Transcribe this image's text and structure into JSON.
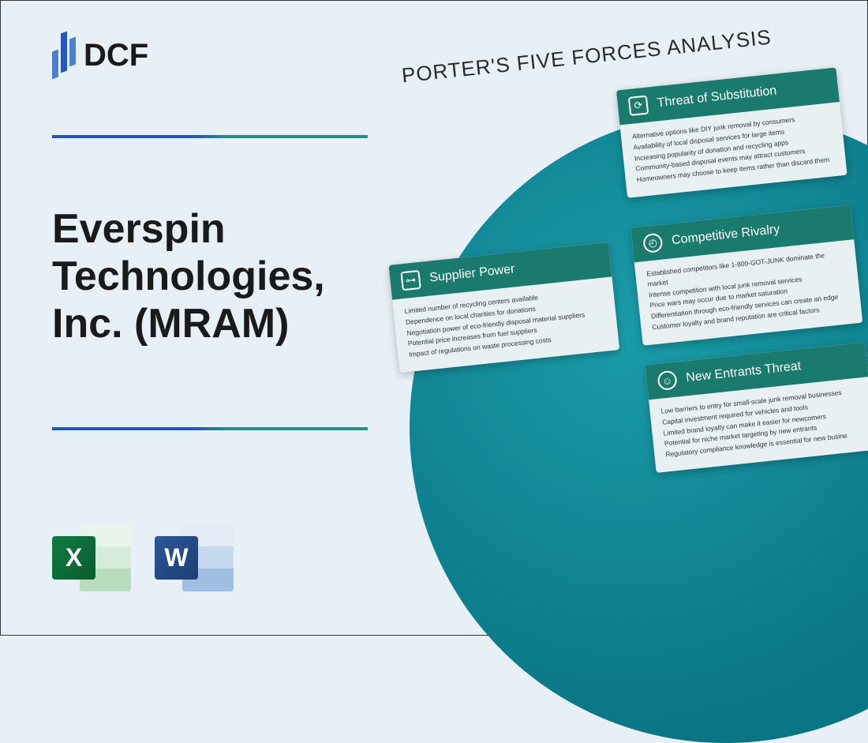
{
  "logo": {
    "text": "DCF"
  },
  "title": "Everspin Technologies, Inc. (MRAM)",
  "analysis_title": "PORTER'S FIVE FORCES ANALYSIS",
  "app_icons": {
    "excel_letter": "X",
    "word_letter": "W"
  },
  "colors": {
    "background": "#e8f0f7",
    "teal_circle": "#0a7585",
    "card_header": "#1a7a6e",
    "divider_blue": "#2256c4",
    "divider_teal": "#1a9488"
  },
  "cards": {
    "substitution": {
      "title": "Threat of Substitution",
      "items": [
        "Alternative options like DIY junk removal by consumers",
        "Availability of local disposal services for large items",
        "Increasing popularity of donation and recycling apps",
        "Community-based disposal events may attract customers",
        "Homeowners may choose to keep items rather than discard them"
      ]
    },
    "supplier": {
      "title": "Supplier Power",
      "items": [
        "Limited number of recycling centers available",
        "Dependence on local charities for donations",
        "Negotiation power of eco-friendly disposal material suppliers",
        "Potential price increases from fuel suppliers",
        "Impact of regulations on waste processing costs"
      ]
    },
    "rivalry": {
      "title": "Competitive Rivalry",
      "items": [
        "Established competitors like 1-800-GOT-JUNK dominate the market",
        "Intense competition with local junk removal services",
        "Price wars may occur due to market saturation",
        "Differentiation through eco-friendly services can create an edge",
        "Customer loyalty and brand reputation are critical factors"
      ]
    },
    "entrants": {
      "title": "New Entrants Threat",
      "items": [
        "Low barriers to entry for small-scale junk removal businesses",
        "Capital investment required for vehicles and tools",
        "Limited brand loyalty can make it easier for newcomers",
        "Potential for niche market targeting by new entrants",
        "Regulatory compliance knowledge is essential for new busine"
      ]
    }
  }
}
